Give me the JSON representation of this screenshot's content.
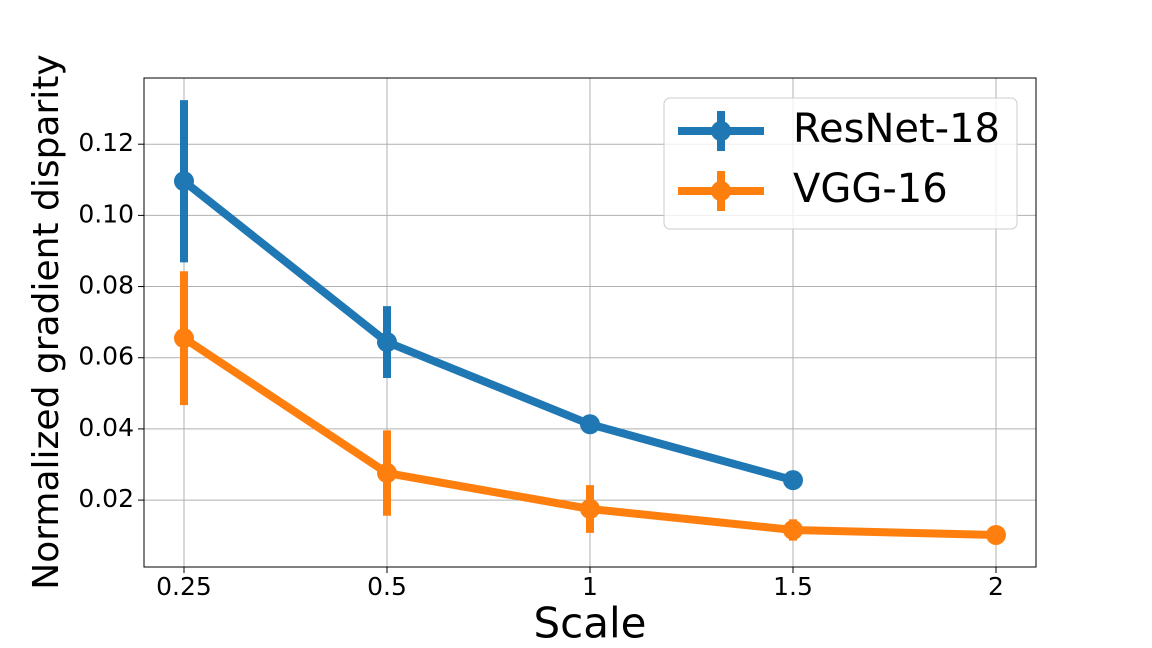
{
  "chart_data": {
    "type": "line",
    "xlabel": "Scale",
    "ylabel": "Normalized gradient disparity",
    "categories": [
      "0.25",
      "0.5",
      "1",
      "1.5",
      "2"
    ],
    "series": [
      {
        "name": "ResNet-18",
        "color": "#1f77b4",
        "values": [
          0.1096,
          0.0644,
          0.0413,
          0.0256,
          null
        ],
        "errors": [
          0.0228,
          0.0101,
          0.001,
          0.001,
          null
        ]
      },
      {
        "name": "VGG-16",
        "color": "#ff7f0e",
        "values": [
          0.0655,
          0.0276,
          0.0175,
          0.0116,
          0.0102
        ],
        "errors": [
          0.0188,
          0.012,
          0.0067,
          0.003,
          0.001
        ]
      }
    ],
    "ylim": [
      0.0012,
      0.1386
    ],
    "yticks": [
      0.02,
      0.04,
      0.06,
      0.08,
      {
        "value": 0.1,
        "label": "0.10"
      },
      0.12
    ],
    "grid": true,
    "legend": "upper right"
  }
}
